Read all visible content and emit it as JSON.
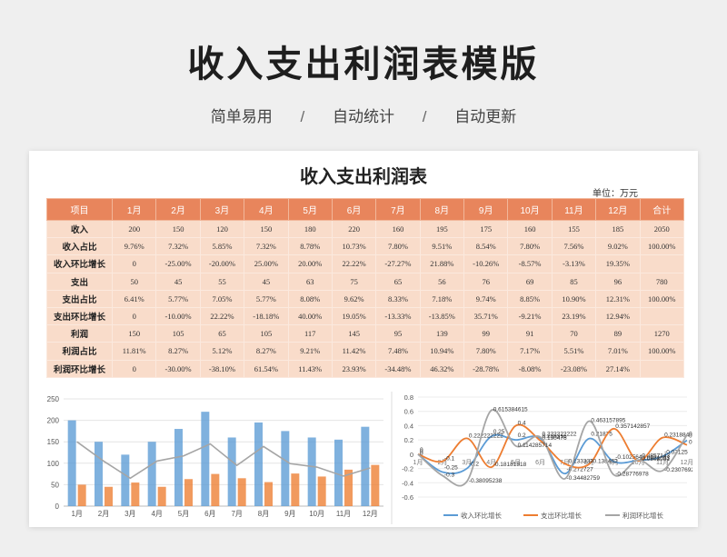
{
  "title": "收入支出利润表模版",
  "subtitle": {
    "item1": "简单易用",
    "sep1": "/",
    "item2": "自动统计",
    "sep2": "/",
    "item3": "自动更新"
  },
  "sheet": {
    "title": "收入支出利润表",
    "unit": "单位：万元",
    "headers": [
      "项目",
      "1月",
      "2月",
      "3月",
      "4月",
      "5月",
      "6月",
      "7月",
      "8月",
      "9月",
      "10月",
      "11月",
      "12月",
      "合计"
    ],
    "rows": [
      [
        "收入",
        "200",
        "150",
        "120",
        "150",
        "180",
        "220",
        "160",
        "195",
        "175",
        "160",
        "155",
        "185",
        "2050"
      ],
      [
        "收入占比",
        "9.76%",
        "7.32%",
        "5.85%",
        "7.32%",
        "8.78%",
        "10.73%",
        "7.80%",
        "9.51%",
        "8.54%",
        "7.80%",
        "7.56%",
        "9.02%",
        "100.00%"
      ],
      [
        "收入环比增长",
        "0",
        "-25.00%",
        "-20.00%",
        "25.00%",
        "20.00%",
        "22.22%",
        "-27.27%",
        "21.88%",
        "-10.26%",
        "-8.57%",
        "-3.13%",
        "19.35%",
        ""
      ],
      [
        "支出",
        "50",
        "45",
        "55",
        "45",
        "63",
        "75",
        "65",
        "56",
        "76",
        "69",
        "85",
        "96",
        "780"
      ],
      [
        "支出占比",
        "6.41%",
        "5.77%",
        "7.05%",
        "5.77%",
        "8.08%",
        "9.62%",
        "8.33%",
        "7.18%",
        "9.74%",
        "8.85%",
        "10.90%",
        "12.31%",
        "100.00%"
      ],
      [
        "支出环比增长",
        "0",
        "-10.00%",
        "22.22%",
        "-18.18%",
        "40.00%",
        "19.05%",
        "-13.33%",
        "-13.85%",
        "35.71%",
        "-9.21%",
        "23.19%",
        "12.94%",
        ""
      ],
      [
        "利润",
        "150",
        "105",
        "65",
        "105",
        "117",
        "145",
        "95",
        "139",
        "99",
        "91",
        "70",
        "89",
        "1270"
      ],
      [
        "利润占比",
        "11.81%",
        "8.27%",
        "5.12%",
        "8.27%",
        "9.21%",
        "11.42%",
        "7.48%",
        "10.94%",
        "7.80%",
        "7.17%",
        "5.51%",
        "7.01%",
        "100.00%"
      ],
      [
        "利润环比增长",
        "0",
        "-30.00%",
        "-38.10%",
        "61.54%",
        "11.43%",
        "23.93%",
        "-34.48%",
        "46.32%",
        "-28.78%",
        "-8.08%",
        "-23.08%",
        "27.14%",
        ""
      ]
    ]
  },
  "chart_data": [
    {
      "type": "bar",
      "categories": [
        "1月",
        "2月",
        "3月",
        "4月",
        "5月",
        "6月",
        "7月",
        "8月",
        "9月",
        "10月",
        "11月",
        "12月"
      ],
      "series": [
        {
          "kind": "bar",
          "color": "#5b9bd5",
          "values": [
            200,
            150,
            120,
            150,
            180,
            220,
            160,
            195,
            175,
            160,
            155,
            185
          ]
        },
        {
          "kind": "bar",
          "color": "#ed7d31",
          "values": [
            50,
            45,
            55,
            45,
            63,
            75,
            65,
            56,
            76,
            69,
            85,
            96
          ]
        },
        {
          "kind": "line",
          "color": "#a5a5a5",
          "values": [
            150,
            105,
            65,
            105,
            117,
            145,
            95,
            139,
            99,
            91,
            70,
            89
          ]
        }
      ],
      "ylim": [
        0,
        250
      ],
      "yticks": [
        "0",
        "50",
        "100",
        "150",
        "200",
        "250"
      ],
      "grid": true
    },
    {
      "type": "line",
      "categories": [
        "1月",
        "2月",
        "3月",
        "4月",
        "5月",
        "6月",
        "7月",
        "8月",
        "9月",
        "10月",
        "11月",
        "12月"
      ],
      "series": [
        {
          "name": "收入环比增长",
          "color": "#5b9bd5",
          "values": [
            0,
            -0.25,
            -0.2,
            0.25,
            0.2,
            0.222222222,
            -0.272727,
            0.21875,
            -0.102564,
            -0.0857143,
            -0.03125,
            0.193548
          ],
          "labels": [
            "0",
            "-0.25",
            "-0.2",
            "0.25",
            "0.2",
            "0.222222222",
            "-0.272727",
            "0.21875",
            "-0.102564",
            "-0.0857143",
            "-0.03125",
            "0.193548"
          ]
        },
        {
          "name": "支出环比增长",
          "color": "#ed7d31",
          "values": [
            0,
            -0.1,
            0.222222222,
            -0.181818,
            0.4,
            0.190476,
            -0.133333,
            -0.138462,
            0.357143,
            -0.0921053,
            0.231884,
            0.129412
          ],
          "labels": [
            "0",
            "-0.1",
            "0.222222222",
            "-0.18181818",
            "0.4",
            "0.190476",
            "-0.133333",
            "-0.138462",
            "0.357142857",
            "-0.0921053",
            "0.231884",
            "0.129411765"
          ]
        },
        {
          "name": "利润环比增长",
          "color": "#a5a5a5",
          "values": [
            0,
            -0.3,
            -0.380952,
            0.615385,
            0.114286,
            0.239316,
            -0.344828,
            0.463158,
            -0.28777,
            -0.0808081,
            -0.230769,
            0.271429
          ],
          "labels": [
            "0",
            "-0.3",
            "-0.38095238",
            "0.615384615",
            "0.114285714",
            "0.239316",
            "-0.34482759",
            "0.463157895",
            "-0.28776978",
            "-0.0808081",
            "-0.23076923",
            "0.271428571"
          ]
        }
      ],
      "ylim": [
        -0.6,
        0.8
      ],
      "yticks": [
        "-0.6",
        "-0.4",
        "-0.2",
        "0",
        "0.2",
        "0.4",
        "0.6",
        "0.8"
      ],
      "legend": "bottom",
      "grid": true
    }
  ]
}
